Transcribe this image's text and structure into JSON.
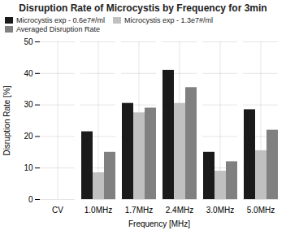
{
  "chart_data": {
    "type": "bar",
    "title": "Disruption Rate of Microcystis by Frequency for 3min",
    "xlabel": "Frequency [MHz]",
    "ylabel": "Disruption Rate [%]",
    "categories": [
      "CV",
      "1.0MHz",
      "1.7MHz",
      "2.4MHz",
      "3.0MHz",
      "5.0MHz"
    ],
    "series": [
      {
        "name": "Microcystis exp - 0.6e7#/ml",
        "color": "#1a1a1a",
        "values": [
          0,
          21.5,
          30.5,
          41.0,
          15.0,
          28.5
        ]
      },
      {
        "name": "Microcystis exp - 1.3e7#/ml",
        "color": "#c0c0c0",
        "values": [
          0,
          8.5,
          27.5,
          30.5,
          9.0,
          15.5
        ]
      },
      {
        "name": "Averaged Disruption Rate",
        "color": "#808080",
        "values": [
          0,
          15.0,
          29.0,
          35.5,
          12.0,
          22.0
        ]
      }
    ],
    "ylim": [
      0,
      50
    ],
    "yticks": [
      0,
      10,
      20,
      30,
      40,
      50
    ],
    "grid": true,
    "legend": "upper left"
  }
}
